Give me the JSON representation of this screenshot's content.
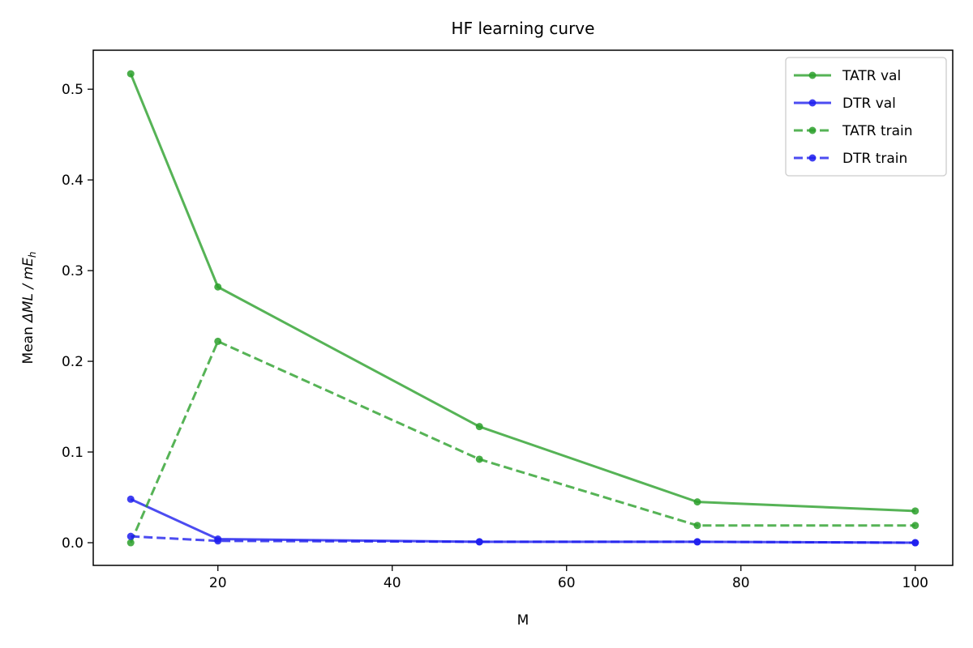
{
  "chart_data": {
    "type": "line",
    "title": "HF learning curve",
    "xlabel": "M",
    "ylabel_prefix": "Mean ",
    "ylabel_math": "ΔML / mE",
    "ylabel_sub": "h",
    "xlim": [
      5.7,
      104.3
    ],
    "ylim": [
      -0.025,
      0.543
    ],
    "xticks": [
      20,
      40,
      60,
      80,
      100
    ],
    "yticks": [
      0.0,
      0.1,
      0.2,
      0.3,
      0.4,
      0.5
    ],
    "ytick_labels": [
      "0.0",
      "0.1",
      "0.2",
      "0.3",
      "0.4",
      "0.5"
    ],
    "grid": false,
    "legend_position": "top-right",
    "x": [
      10,
      20,
      50,
      75,
      100
    ],
    "series": [
      {
        "name": "TATR val",
        "color": "#2ca02c",
        "dash": "solid",
        "values": [
          0.517,
          0.282,
          0.128,
          0.045,
          0.035
        ]
      },
      {
        "name": "DTR val",
        "color": "#1f1fee",
        "dash": "solid",
        "values": [
          0.048,
          0.004,
          0.001,
          0.001,
          0.0
        ]
      },
      {
        "name": "TATR train",
        "color": "#2ca02c",
        "dash": "dashed",
        "values": [
          0.0,
          0.222,
          0.092,
          0.019,
          0.019
        ]
      },
      {
        "name": "DTR train",
        "color": "#1f1fee",
        "dash": "dashed",
        "values": [
          0.007,
          0.002,
          0.001,
          0.001,
          0.0
        ]
      }
    ]
  }
}
